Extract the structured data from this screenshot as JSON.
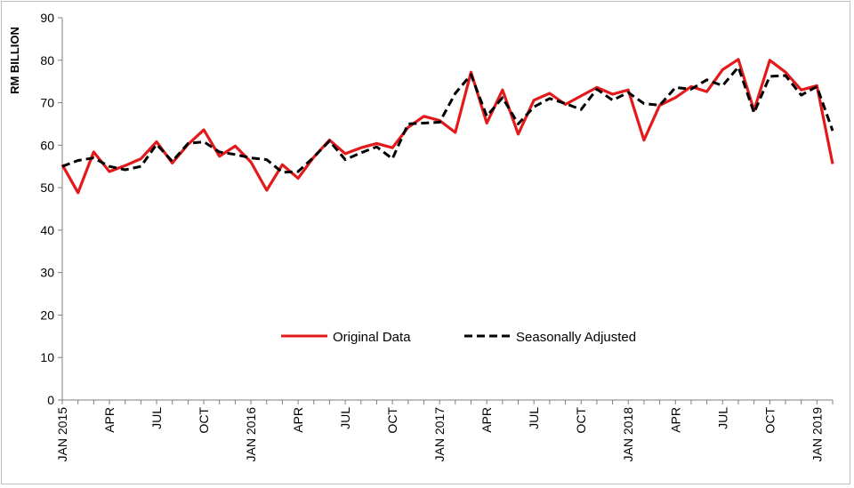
{
  "chart_data": {
    "type": "line",
    "title": "",
    "xlabel": "",
    "ylabel": "RM BILLION",
    "ylim": [
      0,
      90
    ],
    "yticks": [
      0,
      10,
      20,
      30,
      40,
      50,
      60,
      70,
      80,
      90
    ],
    "grid": false,
    "legend_position": "bottom-center",
    "x_tick_labels": [
      {
        "index": 0,
        "label": "JAN 2015"
      },
      {
        "index": 3,
        "label": "APR"
      },
      {
        "index": 6,
        "label": "JUL"
      },
      {
        "index": 9,
        "label": "OCT"
      },
      {
        "index": 12,
        "label": "JAN 2016"
      },
      {
        "index": 15,
        "label": "APR"
      },
      {
        "index": 18,
        "label": "JUL"
      },
      {
        "index": 21,
        "label": "OCT"
      },
      {
        "index": 24,
        "label": "JAN 2017"
      },
      {
        "index": 27,
        "label": "APR"
      },
      {
        "index": 30,
        "label": "JUL"
      },
      {
        "index": 33,
        "label": "OCT"
      },
      {
        "index": 36,
        "label": "JAN 2018"
      },
      {
        "index": 39,
        "label": "APR"
      },
      {
        "index": 42,
        "label": "JUL"
      },
      {
        "index": 45,
        "label": "OCT"
      },
      {
        "index": 48,
        "label": "JAN 2019"
      }
    ],
    "series": [
      {
        "name": "Original Data",
        "color": "#e31a1c",
        "style": "solid",
        "values": [
          55.4,
          48.8,
          58.4,
          53.8,
          55.2,
          56.8,
          60.8,
          55.8,
          60.2,
          63.6,
          57.4,
          59.8,
          56.0,
          49.4,
          55.4,
          52.2,
          57.2,
          61.2,
          58.0,
          59.4,
          60.4,
          59.4,
          64.2,
          66.8,
          65.8,
          63.0,
          77.2,
          65.2,
          73.0,
          62.6,
          70.6,
          72.2,
          69.6,
          71.6,
          73.6,
          72.0,
          73.0,
          61.2,
          69.4,
          71.2,
          73.8,
          72.6,
          77.8,
          80.2,
          68.2,
          80.0,
          77.2,
          73.0,
          74.0,
          55.6
        ]
      },
      {
        "name": "Seasonally Adjusted",
        "color": "#000000",
        "style": "dashed",
        "values": [
          55.0,
          56.4,
          57.0,
          55.0,
          54.2,
          55.0,
          60.2,
          56.2,
          60.4,
          60.8,
          58.4,
          57.8,
          57.0,
          56.6,
          53.6,
          53.8,
          57.2,
          61.0,
          56.6,
          58.2,
          59.6,
          56.8,
          65.0,
          65.2,
          65.4,
          72.2,
          76.6,
          66.8,
          71.2,
          65.0,
          69.0,
          71.0,
          69.8,
          68.4,
          73.2,
          70.6,
          72.4,
          69.8,
          69.4,
          73.6,
          73.2,
          75.4,
          74.0,
          78.4,
          67.6,
          76.2,
          76.4,
          71.8,
          73.8,
          63.4
        ]
      }
    ]
  }
}
